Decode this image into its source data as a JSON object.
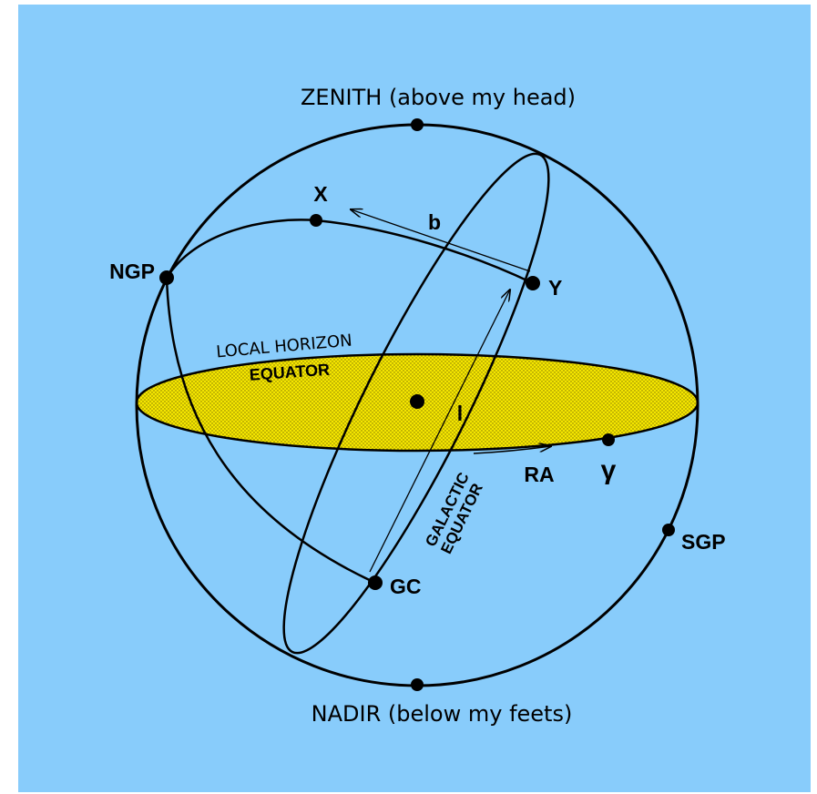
{
  "labels": {
    "zenith": "ZENITH (above my head)",
    "nadir": "NADIR (below my feets)",
    "ngp": "NGP",
    "sgp": "SGP",
    "x": "X",
    "y": "Y",
    "b": "b",
    "l": "l",
    "gc": "GC",
    "ra": "RA",
    "vernal": "γ",
    "local_horizon": "LOCAL HORIZON",
    "equator": "EQUATOR",
    "galactic_1": "GALACTIC",
    "galactic_2": "EQUATOR"
  }
}
